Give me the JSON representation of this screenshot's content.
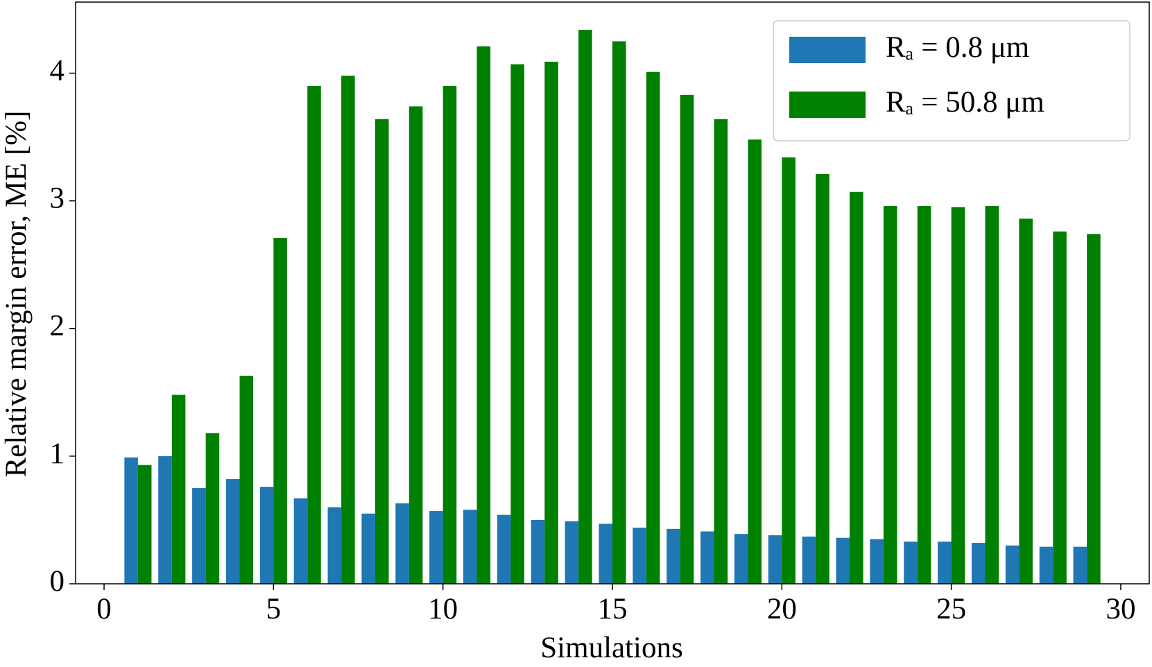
{
  "chart_data": {
    "type": "bar",
    "xlabel": "Simulations",
    "ylabel": "Relative margin error, ME [%]",
    "x": [
      1,
      2,
      3,
      4,
      5,
      6,
      7,
      8,
      9,
      10,
      11,
      12,
      13,
      14,
      15,
      16,
      17,
      18,
      19,
      20,
      21,
      22,
      23,
      24,
      25,
      26,
      27,
      28,
      29
    ],
    "series": [
      {
        "name": "Rₐ = 0.8 μm",
        "color": "#1f77b4",
        "values": [
          0.99,
          1.0,
          0.75,
          0.82,
          0.76,
          0.67,
          0.6,
          0.55,
          0.63,
          0.57,
          0.58,
          0.54,
          0.5,
          0.49,
          0.47,
          0.44,
          0.43,
          0.41,
          0.39,
          0.38,
          0.37,
          0.36,
          0.35,
          0.33,
          0.33,
          0.32,
          0.3,
          0.29,
          0.29
        ]
      },
      {
        "name": "Rₐ = 50.8 μm",
        "color": "#008000",
        "values": [
          0.93,
          1.48,
          1.18,
          1.63,
          2.71,
          3.9,
          3.98,
          3.64,
          3.74,
          3.9,
          4.21,
          4.07,
          4.09,
          4.34,
          4.25,
          4.01,
          3.83,
          3.64,
          3.48,
          3.34,
          3.21,
          3.07,
          2.96,
          2.96,
          2.95,
          2.96,
          2.86,
          2.76,
          2.74
        ]
      }
    ],
    "xlim": [
      -0.84,
      30.84
    ],
    "xticks": [
      0,
      5,
      10,
      15,
      20,
      25,
      30
    ],
    "ylim": [
      0,
      4.557
    ],
    "yticks": [
      0,
      1,
      2,
      3,
      4
    ],
    "bar_width": 0.4,
    "legend": "upper right",
    "grid": false
  }
}
